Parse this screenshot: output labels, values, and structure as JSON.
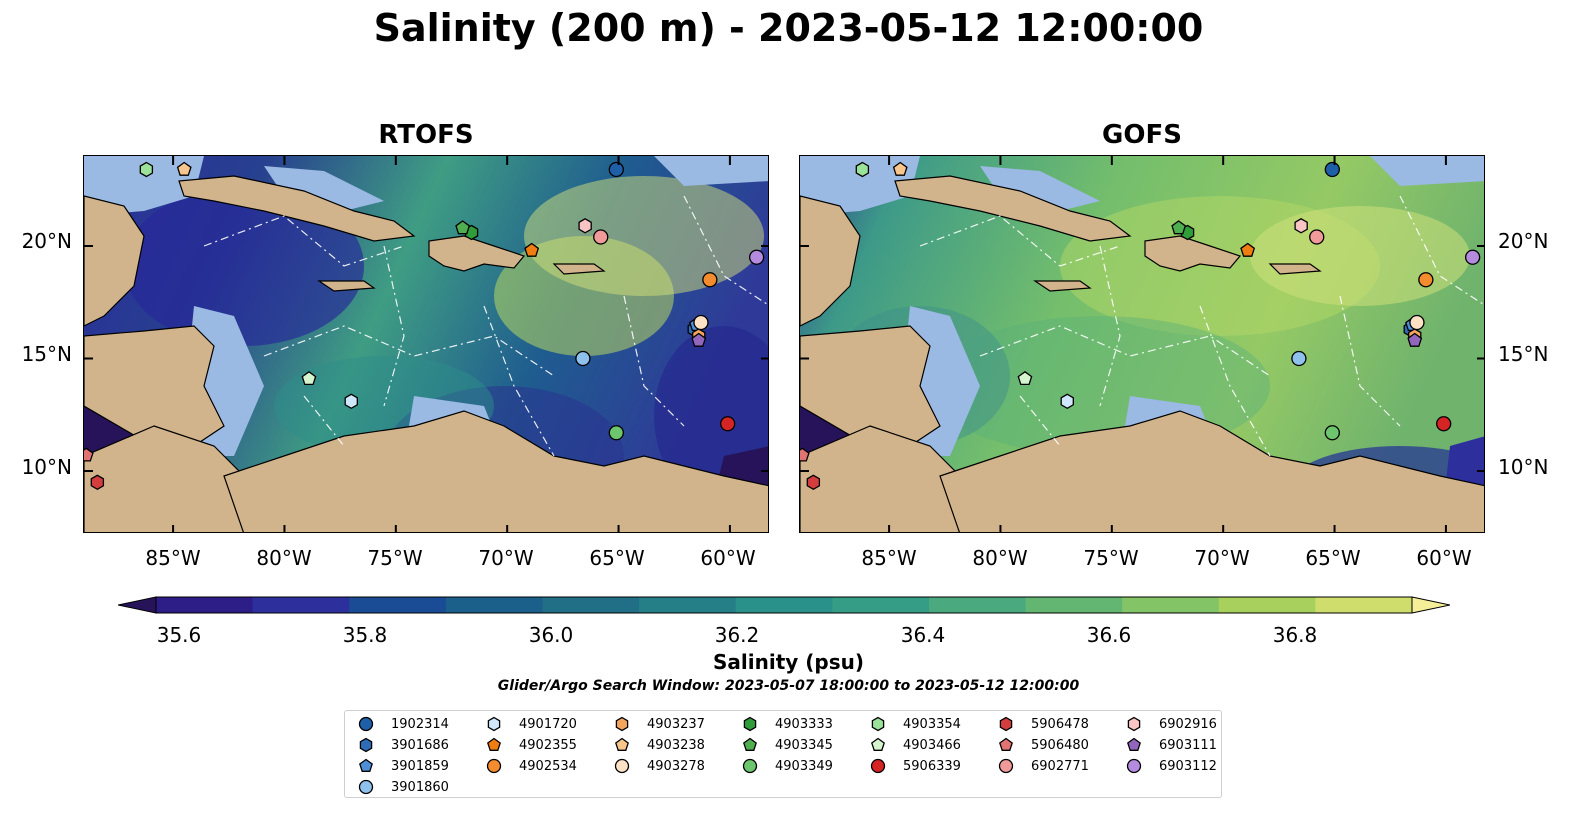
{
  "title": "Salinity (200 m) - 2023-05-12 12:00:00",
  "panels": [
    {
      "title": "RTOFS"
    },
    {
      "title": "GOFS"
    }
  ],
  "x_ticks": [
    "85°W",
    "80°W",
    "75°W",
    "70°W",
    "65°W",
    "60°W"
  ],
  "y_ticks": [
    "20°N",
    "15°N",
    "10°N"
  ],
  "colorbar": {
    "label": "Salinity (psu)",
    "ticks": [
      "35.6",
      "35.8",
      "36.0",
      "36.2",
      "36.4",
      "36.6",
      "36.8"
    ],
    "min": 35.5,
    "max": 36.9,
    "step": 0.1,
    "extend": "both",
    "colors": [
      "#27135a",
      "#2d1d86",
      "#2c2f9c",
      "#1a4c95",
      "#1b5f8b",
      "#216e87",
      "#247f86",
      "#29918a",
      "#359c85",
      "#4aa97e",
      "#63b672",
      "#82c466",
      "#a8d05c",
      "#cfdd6c",
      "#f6ef9a"
    ]
  },
  "search_window": "Glider/Argo Search Window: 2023-05-07 18:00:00 to 2023-05-12 12:00:00",
  "map_colors": {
    "land": "#d2b48c",
    "shelf": "#9ab9e3",
    "land_edge": "#000000"
  },
  "floats": [
    {
      "id": "1902314",
      "marker": "circle",
      "color": "#1f5fa8",
      "lon": -65.1,
      "lat": 23.4
    },
    {
      "id": "3901686",
      "marker": "hexagon",
      "color": "#2f6cb6",
      "lon": -61.6,
      "lat": 16.3
    },
    {
      "id": "3901859",
      "marker": "pentagon",
      "color": "#4f8fd8",
      "lon": -61.5,
      "lat": 16.5
    },
    {
      "id": "3901860",
      "marker": "circle",
      "color": "#8ec1ec",
      "lon": -66.6,
      "lat": 15.0
    },
    {
      "id": "4901720",
      "marker": "hexagon",
      "color": "#cfe6fb",
      "lon": -77.0,
      "lat": 13.1
    },
    {
      "id": "4902355",
      "marker": "pentagon",
      "color": "#f07d12",
      "lon": -68.9,
      "lat": 19.8
    },
    {
      "id": "4902534",
      "marker": "circle",
      "color": "#f28c2e",
      "lon": -60.9,
      "lat": 18.5
    },
    {
      "id": "4903237",
      "marker": "hexagon",
      "color": "#f4a55d",
      "lon": -61.4,
      "lat": 16.0
    },
    {
      "id": "4903238",
      "marker": "pentagon",
      "color": "#f8c58c",
      "lon": -84.5,
      "lat": 23.4
    },
    {
      "id": "4903278",
      "marker": "circle",
      "color": "#fde2c6",
      "lon": -61.3,
      "lat": 16.6
    },
    {
      "id": "4903333",
      "marker": "hexagon",
      "color": "#2f9e3a",
      "lon": -71.6,
      "lat": 20.6
    },
    {
      "id": "4903345",
      "marker": "pentagon",
      "color": "#4fae4f",
      "lon": -72.0,
      "lat": 20.8
    },
    {
      "id": "4903349",
      "marker": "circle",
      "color": "#6dc66d",
      "lon": -65.1,
      "lat": 11.7
    },
    {
      "id": "4903354",
      "marker": "hexagon",
      "color": "#9be29b",
      "lon": -86.2,
      "lat": 23.4
    },
    {
      "id": "4903466",
      "marker": "pentagon",
      "color": "#d5f5cf",
      "lon": -78.9,
      "lat": 14.1
    },
    {
      "id": "5906339",
      "marker": "circle",
      "color": "#d42424",
      "lon": -60.1,
      "lat": 12.1
    },
    {
      "id": "5906478",
      "marker": "hexagon",
      "color": "#d33d3d",
      "lon": -88.4,
      "lat": 9.5
    },
    {
      "id": "5906480",
      "marker": "pentagon",
      "color": "#e27373",
      "lon": -88.9,
      "lat": 10.7
    },
    {
      "id": "6902771",
      "marker": "circle",
      "color": "#f09a9a",
      "lon": -65.8,
      "lat": 20.4
    },
    {
      "id": "6902916",
      "marker": "hexagon",
      "color": "#f9c4c4",
      "lon": -66.5,
      "lat": 20.9
    },
    {
      "id": "6903111",
      "marker": "pentagon",
      "color": "#9366bd",
      "lon": -61.4,
      "lat": 15.8
    },
    {
      "id": "6903112",
      "marker": "circle",
      "color": "#b58be0",
      "lon": -58.8,
      "lat": 19.5
    }
  ]
}
